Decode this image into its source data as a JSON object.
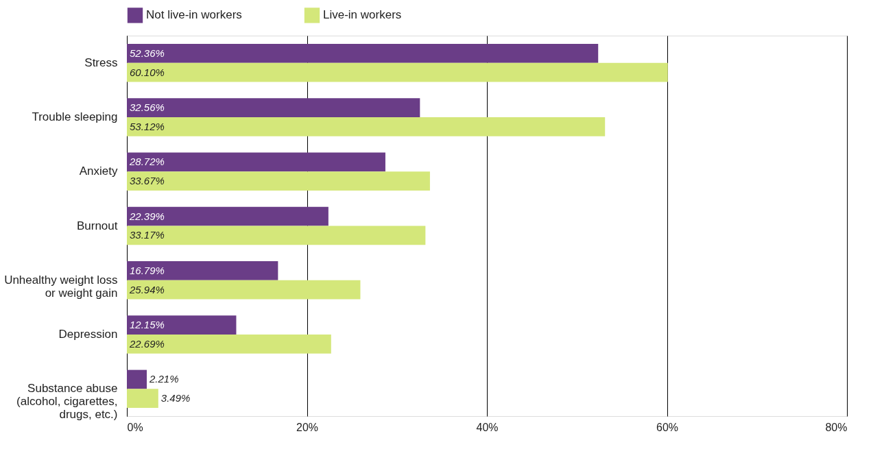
{
  "chart_data": {
    "type": "bar",
    "orientation": "horizontal",
    "categories": [
      "Stress",
      "Trouble sleeping",
      "Anxiety",
      "Burnout",
      "Unhealthy weight loss or weight gain",
      "Depression",
      "Substance abuse (alcohol, cigarettes, drugs, etc.)"
    ],
    "series": [
      {
        "name": "Not live-in workers",
        "color": "#6a3d87",
        "values": [
          52.36,
          32.56,
          28.72,
          22.39,
          16.79,
          12.15,
          2.21
        ],
        "value_labels": [
          "52.36%",
          "32.56%",
          "28.72%",
          "22.39%",
          "16.79%",
          "12.15%",
          "2.21%"
        ]
      },
      {
        "name": "Live-in workers",
        "color": "#d4e77a",
        "values": [
          60.1,
          53.12,
          33.67,
          33.17,
          25.94,
          22.69,
          3.49
        ],
        "value_labels": [
          "60.10%",
          "53.12%",
          "33.67%",
          "33.17%",
          "25.94%",
          "22.69%",
          "3.49%"
        ]
      }
    ],
    "xlim": [
      0,
      80
    ],
    "xticks": [
      {
        "value": 0,
        "label": "0%"
      },
      {
        "value": 20,
        "label": "20%"
      },
      {
        "value": 40,
        "label": "40%"
      },
      {
        "value": 60,
        "label": "60%"
      },
      {
        "value": 80,
        "label": "80%"
      }
    ],
    "grid": "x",
    "legend": "top"
  }
}
